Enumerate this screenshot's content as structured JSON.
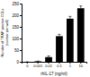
{
  "chart_data": {
    "type": "bar",
    "ylabel": [
      "Number of TRAP-positive OCLs",
      "(number per well)"
    ],
    "xlabel": "rhIL-17 (ng/ml)",
    "categories": [
      "0",
      "0.001",
      "0.01",
      "0.1",
      "1",
      "10"
    ],
    "values": [
      0,
      2,
      20,
      110,
      185,
      230
    ],
    "errors": [
      0,
      1,
      5,
      8,
      10,
      10
    ],
    "color": "#000000",
    "ylim": [
      0,
      250
    ],
    "yticks": [
      0,
      50,
      100,
      150,
      200,
      250
    ],
    "grid": false
  }
}
